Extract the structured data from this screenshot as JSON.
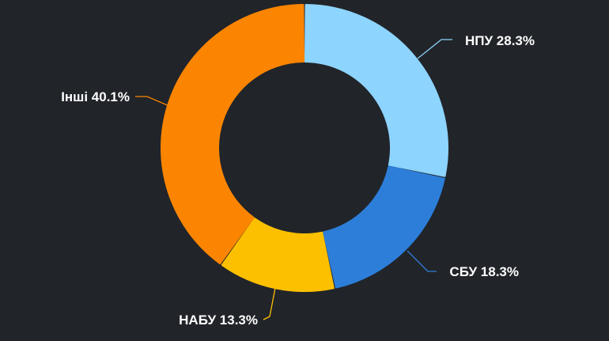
{
  "chart_data": {
    "type": "pie",
    "variant": "donut",
    "title": "",
    "background": "#212429",
    "slices": [
      {
        "name": "НПУ",
        "value": 28.3,
        "label": "НПУ 28.3%",
        "color": "#8DD4FE"
      },
      {
        "name": "СБУ",
        "value": 18.3,
        "label": "СБУ 18.3%",
        "color": "#2C7ED8"
      },
      {
        "name": "НАБУ",
        "value": 13.3,
        "label": "НАБУ 13.3%",
        "color": "#FDC001"
      },
      {
        "name": "Інші",
        "value": 40.1,
        "label": "Інші 40.1%",
        "color": "#FB8501"
      }
    ],
    "start_angle": "12 o'clock",
    "direction": "clockwise",
    "legend": "none (labels beside slices)"
  }
}
